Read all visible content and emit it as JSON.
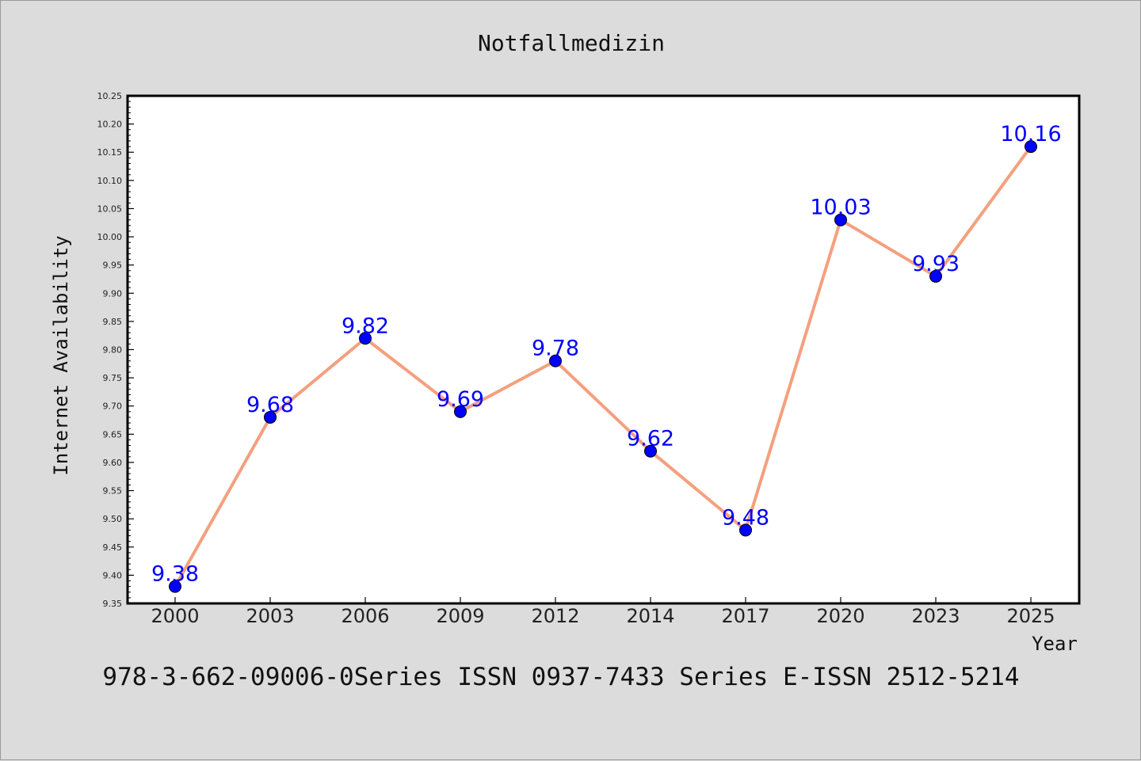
{
  "chart_data": {
    "type": "line",
    "title": "Notfallmedizin",
    "xlabel": "Year",
    "ylabel": "Internet Availability",
    "categories": [
      "2000",
      "2003",
      "2006",
      "2009",
      "2012",
      "2014",
      "2017",
      "2020",
      "2023",
      "2025"
    ],
    "series": [
      {
        "values": [
          9.38,
          9.68,
          9.82,
          9.69,
          9.78,
          9.62,
          9.48,
          10.03,
          9.93,
          10.16
        ],
        "data_labels": [
          "9.38",
          "9.68",
          "9.82",
          "9.69",
          "9.78",
          "9.62",
          "9.48",
          "10.03",
          "9.93",
          "10.16"
        ],
        "line_color": "#f4a07e",
        "marker_color": "#0000ff"
      }
    ],
    "ylim": [
      9.35,
      10.25
    ],
    "yticks": [
      "9.35",
      "9.40",
      "9.45",
      "9.50",
      "9.55",
      "9.60",
      "9.65",
      "9.70",
      "9.75",
      "9.80",
      "9.85",
      "9.90",
      "9.95",
      "10.00",
      "10.05",
      "10.10",
      "10.15",
      "10.20",
      "10.25"
    ],
    "grid": false,
    "legend": "none"
  },
  "footer": {
    "text": "978-3-662-09006-0Series ISSN 0937-7433 Series E-ISSN 2512-5214"
  },
  "colors": {
    "background": "#dcdcdc",
    "plot_background": "#ffffff",
    "line": "#f4a07e",
    "marker": "#0000ff",
    "label": "#0000ff"
  }
}
